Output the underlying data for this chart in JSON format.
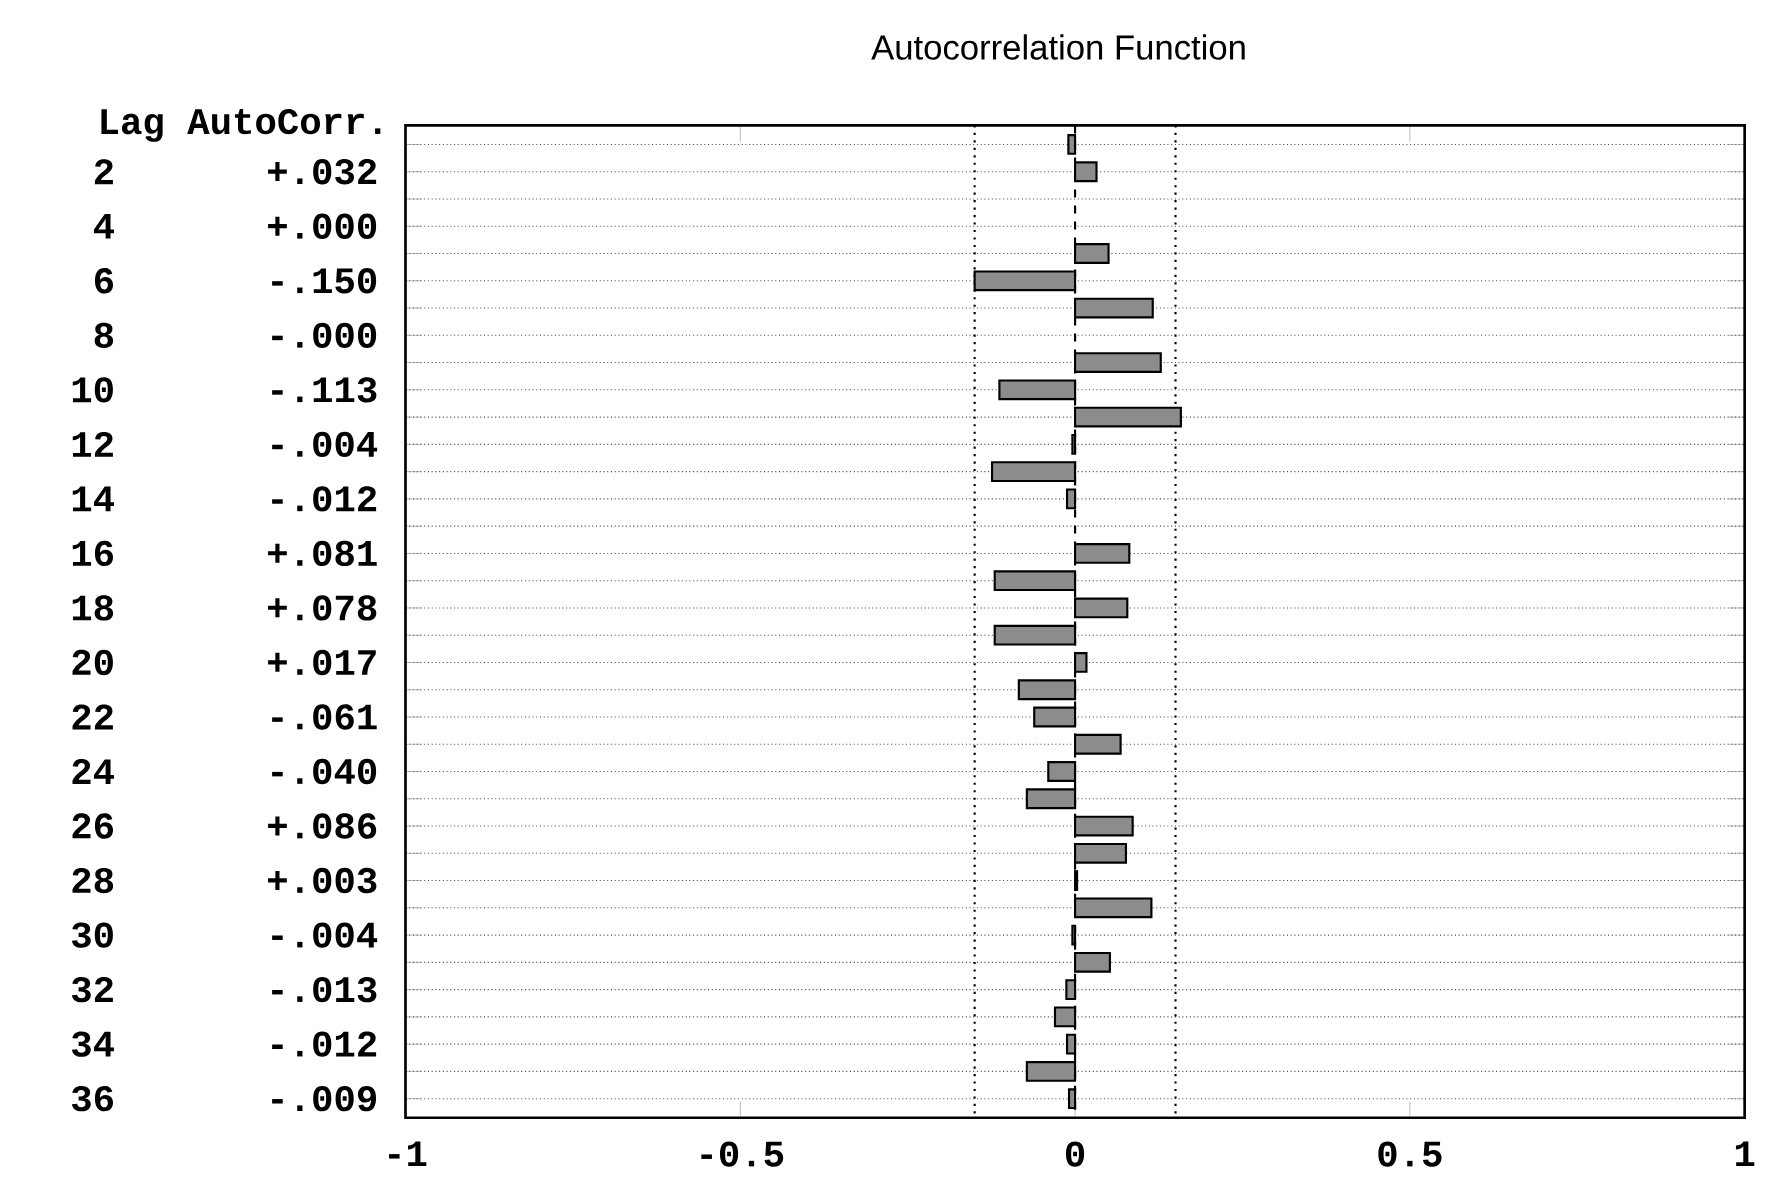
{
  "chart_data": {
    "type": "bar",
    "orientation": "horizontal",
    "title": "Autocorrelation Function",
    "ylabel": "Lag AutoCorr.",
    "categories": [
      null,
      "2",
      null,
      "4",
      null,
      "6",
      null,
      "8",
      null,
      "10",
      null,
      "12",
      null,
      "14",
      null,
      "16",
      null,
      "18",
      null,
      "20",
      null,
      "22",
      null,
      "24",
      null,
      "26",
      null,
      "28",
      null,
      "30",
      null,
      "32",
      null,
      "34",
      null,
      "36"
    ],
    "values": [
      -0.01,
      0.032,
      0,
      0.0,
      0.05,
      -0.15,
      0.116,
      -0.0,
      0.128,
      -0.113,
      0.158,
      -0.004,
      -0.124,
      -0.012,
      0,
      0.081,
      -0.12,
      0.078,
      -0.12,
      0.017,
      -0.084,
      -0.061,
      0.068,
      -0.04,
      -0.072,
      0.086,
      0.076,
      0.003,
      0.114,
      -0.004,
      0.052,
      -0.013,
      -0.03,
      -0.012,
      -0.072,
      -0.009
    ],
    "value_labels": [
      null,
      "+.032",
      null,
      "+.000",
      null,
      "-.150",
      null,
      "-.000",
      null,
      "-.113",
      null,
      "-.004",
      null,
      "-.012",
      null,
      "+.081",
      null,
      "+.078",
      null,
      "+.017",
      null,
      "-.061",
      null,
      "-.040",
      null,
      "+.086",
      null,
      "+.003",
      null,
      "-.004",
      null,
      "-.013",
      null,
      "-.012",
      null,
      "-.009"
    ],
    "color": "#8c8c8c",
    "xlim": [
      -1,
      1
    ],
    "xticks": [
      -1,
      -0.5,
      0,
      0.5,
      1
    ],
    "grid": "y",
    "ref_lines": [
      {
        "axis": "x",
        "value": -0.15,
        "line_style": "dotted"
      },
      {
        "axis": "x",
        "value": 0.15,
        "line_style": "dotted"
      },
      {
        "axis": "x",
        "value": 0,
        "line_style": "dashed"
      }
    ]
  }
}
